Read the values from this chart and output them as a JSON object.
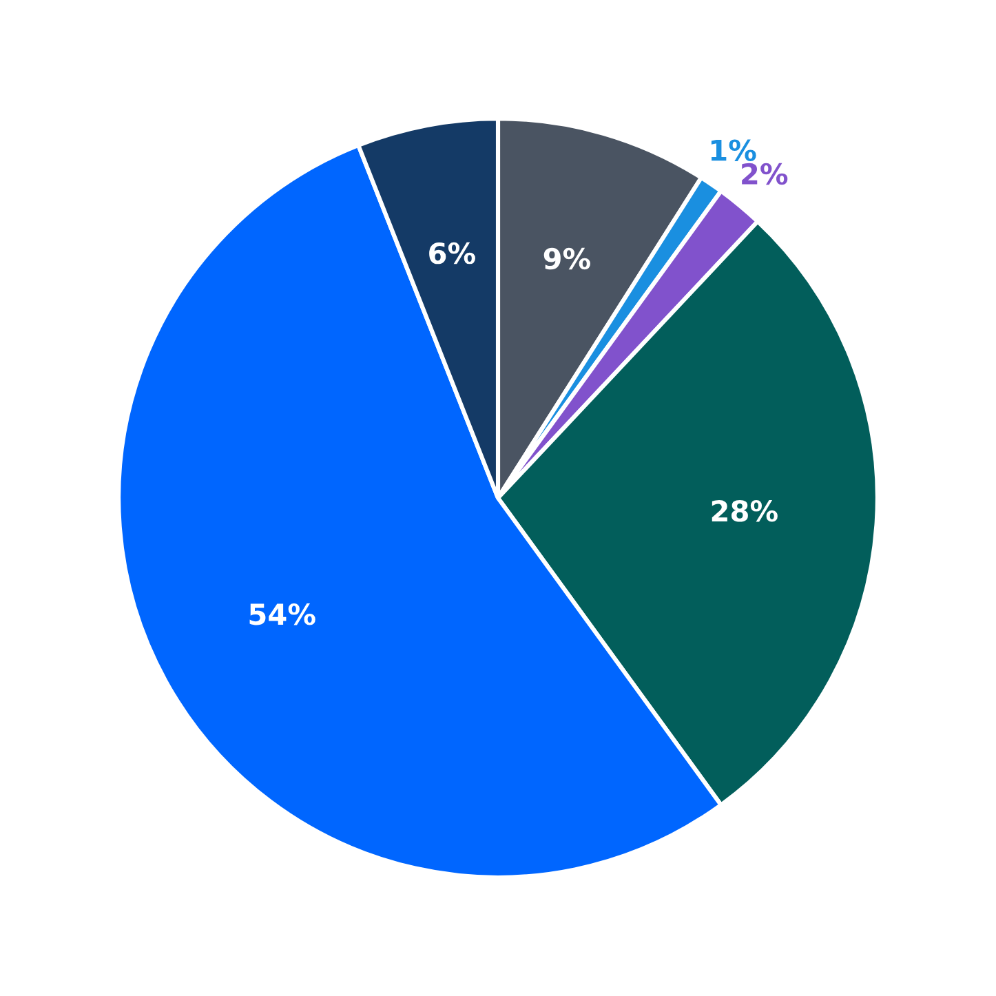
{
  "chart_data": {
    "type": "pie",
    "categories": [
      null,
      null,
      null,
      null,
      null,
      null
    ],
    "values": [
      9,
      1,
      2,
      28,
      54,
      6
    ],
    "colors": [
      "#4a5462",
      "#1a8fe0",
      "#8152cc",
      "#025e5b",
      "#0066ff",
      "#143a66"
    ],
    "value_labels": [
      "9%",
      "1%",
      "2%",
      "28%",
      "54%",
      "6%"
    ]
  }
}
